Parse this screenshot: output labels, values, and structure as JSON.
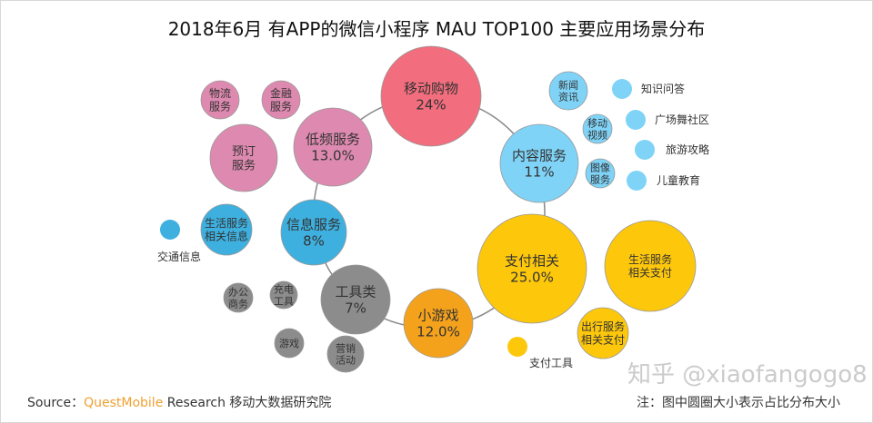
{
  "title": "2018年6月 有APP的微信小程序 MAU TOP100 主要应用场景分布",
  "colors": {
    "red": "#f26d7d",
    "lightblue": "#7fd3f7",
    "yellow": "#fdc70c",
    "orange": "#f4a21c",
    "gray": "#8c8c8c",
    "blue": "#3eb0df",
    "pink": "#de8ab0"
  },
  "main_categories": [
    {
      "label": "移动购物",
      "value": "24%",
      "color": "red"
    },
    {
      "label": "内容服务",
      "value": "11%",
      "color": "lightblue"
    },
    {
      "label": "支付相关",
      "value": "25.0%",
      "color": "yellow"
    },
    {
      "label": "小游戏",
      "value": "12.0%",
      "color": "orange"
    },
    {
      "label": "工具类",
      "value": "7%",
      "color": "gray"
    },
    {
      "label": "信息服务",
      "value": "8%",
      "color": "blue"
    },
    {
      "label": "低频服务",
      "value": "13.0%",
      "color": "pink"
    }
  ],
  "sub_bubbles": [
    {
      "lines": [
        "物流",
        "服务"
      ],
      "color": "pink"
    },
    {
      "lines": [
        "金融",
        "服务"
      ],
      "color": "pink"
    },
    {
      "lines": [
        "预订",
        "服务"
      ],
      "color": "pink"
    },
    {
      "lines": [
        "生活服务",
        "相关信息"
      ],
      "color": "blue"
    },
    {
      "lines": [
        "办公",
        "商务"
      ],
      "color": "gray"
    },
    {
      "lines": [
        "充电",
        "工具"
      ],
      "color": "gray"
    },
    {
      "lines": [
        "游戏"
      ],
      "color": "gray"
    },
    {
      "lines": [
        "营销",
        "活动"
      ],
      "color": "gray"
    },
    {
      "lines": [
        "新闻",
        "资讯"
      ],
      "color": "lightblue"
    },
    {
      "lines": [
        "移动",
        "视频"
      ],
      "color": "lightblue"
    },
    {
      "lines": [
        "图像",
        "服务"
      ],
      "color": "lightblue"
    },
    {
      "lines": [
        "生活服务",
        "相关支付"
      ],
      "color": "yellow"
    },
    {
      "lines": [
        "出行服务",
        "相关支付"
      ],
      "color": "yellow"
    }
  ],
  "dot_items": [
    {
      "label": "交通信息",
      "color": "blue"
    },
    {
      "label": "知识问答",
      "color": "lightblue"
    },
    {
      "label": "广场舞社区",
      "color": "lightblue"
    },
    {
      "label": "旅游攻略",
      "color": "lightblue"
    },
    {
      "label": "儿童教育",
      "color": "lightblue"
    },
    {
      "label": "支付工具",
      "color": "yellow"
    }
  ],
  "footer": {
    "source_prefix": "Source：",
    "source_brand": "QuestMobile",
    "source_suffix": " Research 移动大数据研究院",
    "note": "注：图中圆圈大小表示占比分布大小",
    "watermark": "知乎 @xiaofangogo8"
  }
}
